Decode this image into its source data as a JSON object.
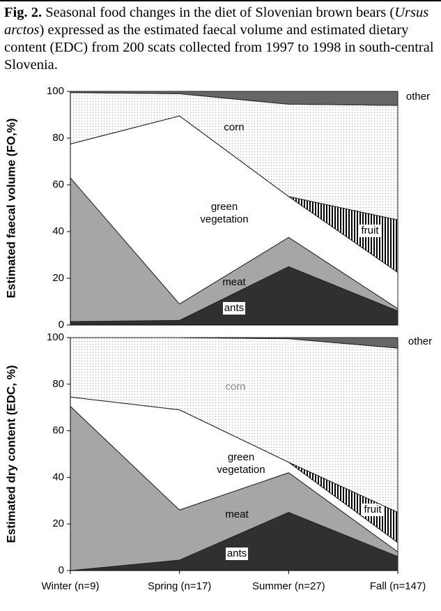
{
  "caption": {
    "label": "Fig. 2.",
    "text_before": "Seasonal food changes in the diet of Slovenian brown bears (",
    "species": "Ursus arctos",
    "text_after": ") expressed as the estimated faecal volume and estimated dietary content (EDC) from 200 scats collected from 1997 to 1998 in south-central Slovenia."
  },
  "chart_data": [
    {
      "type": "stacked-area",
      "ylabel": "Estimated faecal volume (FO,%)",
      "ylim": [
        0,
        100
      ],
      "yticks": [
        0,
        20,
        40,
        60,
        80,
        100
      ],
      "series": [
        {
          "name": "ants",
          "color": "#303030",
          "values": [
            1.5,
            2,
            25,
            6
          ]
        },
        {
          "name": "meat",
          "color": "#a6a6a6",
          "values": [
            61.5,
            7,
            12.5,
            1
          ]
        },
        {
          "name": "green vegetation",
          "color": "#ffffff",
          "values": [
            14.5,
            80.5,
            17.5,
            15.5
          ]
        },
        {
          "name": "fruit",
          "color": "#000000",
          "pattern": "stripes",
          "values": [
            0,
            0,
            0,
            22.5
          ]
        },
        {
          "name": "corn",
          "color": "#9a9a9a",
          "pattern": "dots",
          "values": [
            22,
            9.5,
            39.5,
            49
          ]
        },
        {
          "name": "other",
          "color": "#666666",
          "values": [
            0.5,
            1,
            5.5,
            6
          ]
        }
      ]
    },
    {
      "type": "stacked-area",
      "ylabel": "Estimated dry content (EDC, %)",
      "categories": [
        "Winter (n=9)",
        "Spring (n=17)",
        "Summer (n=27)",
        "Fall (n=147)"
      ],
      "ylim": [
        0,
        100
      ],
      "yticks": [
        0,
        20,
        40,
        60,
        80,
        100
      ],
      "series": [
        {
          "name": "ants",
          "color": "#303030",
          "values": [
            0,
            4.5,
            25,
            6
          ]
        },
        {
          "name": "meat",
          "color": "#a6a6a6",
          "values": [
            70.5,
            21.5,
            17,
            2
          ]
        },
        {
          "name": "green vegetation",
          "color": "#ffffff",
          "values": [
            4,
            43,
            4.5,
            4
          ]
        },
        {
          "name": "fruit",
          "color": "#000000",
          "pattern": "stripes",
          "values": [
            0,
            0,
            0,
            13
          ]
        },
        {
          "name": "corn",
          "color": "#9a9a9a",
          "pattern": "dots",
          "values": [
            25.5,
            31,
            53,
            70.5
          ]
        },
        {
          "name": "other",
          "color": "#666666",
          "values": [
            0,
            0,
            0.5,
            4.5
          ]
        }
      ]
    }
  ]
}
